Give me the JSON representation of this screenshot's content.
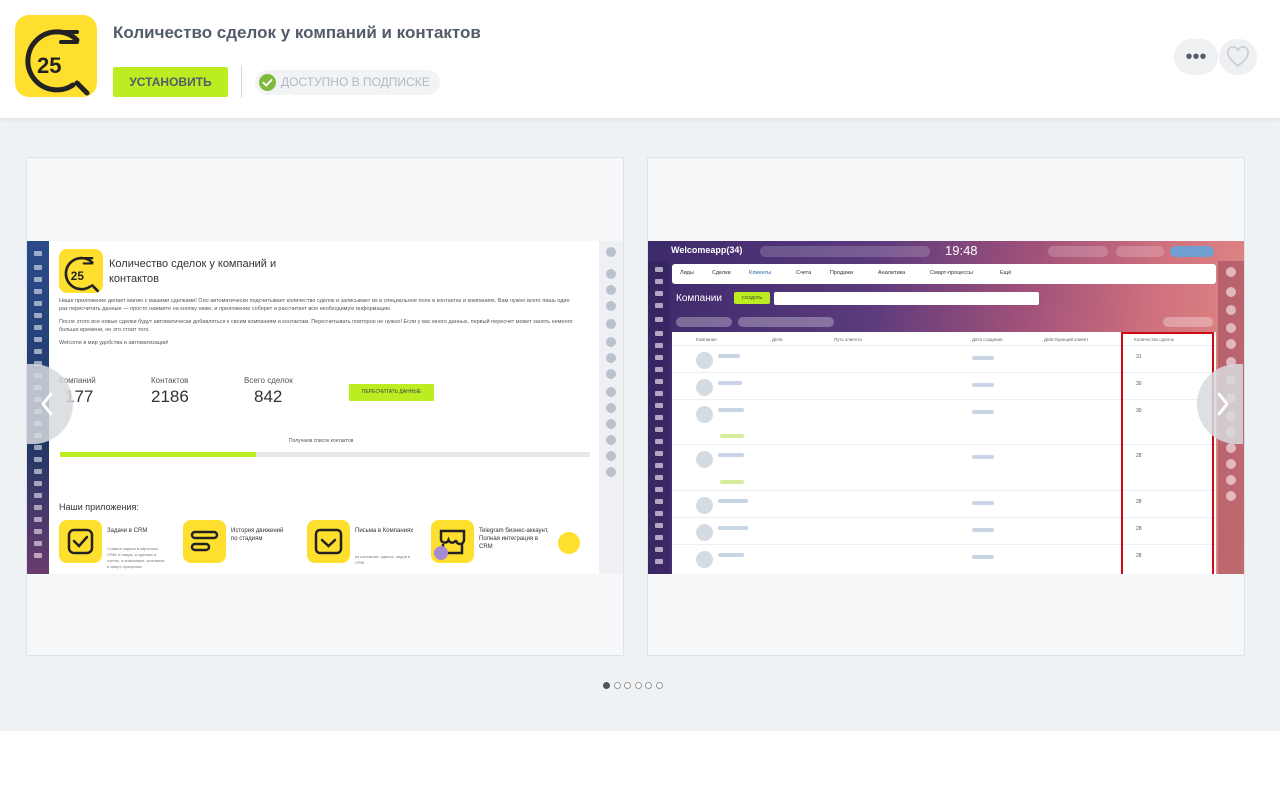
{
  "header": {
    "title": "Количество сделок у компаний и контактов",
    "install_label": "УСТАНОВИТЬ",
    "subscription_label": "ДОСТУПНО В ПОДПИСКЕ",
    "more_label": "•••",
    "icon_number": "25",
    "accent_color": "#bbed21",
    "icon_color": "#ffdf2e"
  },
  "slides": [
    {
      "title": "Количество сделок у компаний и контактов",
      "intro": "Наше приложение делает магию с вашими сделками! Оно автоматически подсчитывает количество сделок и записывает их в специальное поле в контактах и компаниях. Вам нужно всего лишь один раз пересчитать данные — просто нажмите на кнопку ниже, и приложение соберет и рассчитает всю необходимую информацию.",
      "note": "После этого все новые сделки будут автоматически добавляться к своим компаниям и контактам. Пересчитывать повторно не нужно! Если у вас много данных, первый пересчет может занять немного больше времени, но это стоит того.",
      "welcome": "Welcome в мир удобства и автоматизации!",
      "stats": [
        {
          "label": "Компаний",
          "value": "177"
        },
        {
          "label": "Контактов",
          "value": "2186"
        },
        {
          "label": "Всего сделок",
          "value": "842"
        }
      ],
      "recount_label": "ПЕРЕСЧИТАТЬ ДАННЫЕ",
      "progress_label": "Получаем список контактов",
      "progress_fraction": 0.37,
      "apps_heading": "Наши приложения:",
      "apps": [
        {
          "name": "Задачи в CRM",
          "desc": "Ставьте задачи в карточках CRM: в лидах, в сделках и счетах, в компаниях, контактах и смарт-процессах",
          "icon": "check-icon"
        },
        {
          "name": "История движений по стадиям",
          "desc": "",
          "icon": "bars-icon"
        },
        {
          "name": "Письма в Компаниях",
          "desc": "из контактов, сделок, лидов в CRM",
          "icon": "inbox-icon"
        },
        {
          "name": "Telegram бизнес-аккаунт. Полная интеграция в CRM",
          "desc": "",
          "icon": "store-icon"
        }
      ]
    },
    {
      "brand": "Welcomeapp(34)",
      "time": "19:48",
      "tabs": [
        "Лиды",
        "Сделки",
        "Клиенты",
        "Счета",
        "Продажи",
        "Аналитика",
        "Смарт-процессы",
        "Ещё"
      ],
      "active_tab": "Клиенты",
      "section_title": "Компании",
      "create_label": "СОЗДАТЬ",
      "columns": [
        "Компания",
        "Дела",
        "Путь клиента",
        "Дата создания",
        "Действующий клиент",
        "Количество сделок"
      ],
      "deal_counts": [
        "31",
        "30",
        "30",
        "28",
        "28",
        "28",
        "28"
      ],
      "highlight_color": "#d10a17"
    }
  ],
  "pagination": {
    "count": 6,
    "active": 0
  }
}
